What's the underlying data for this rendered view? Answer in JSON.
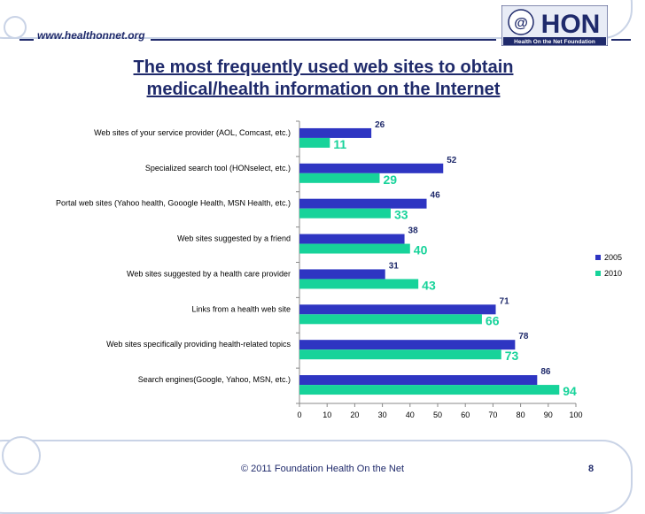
{
  "header": {
    "site_url": "www.healthonnet.org",
    "logo_text": "HON",
    "logo_subtitle": "Health On the Net Foundation",
    "title_line1": "The most frequently used web sites to obtain",
    "title_line2": "medical/health information on the Internet"
  },
  "footer": {
    "copyright": "© 2011 Foundation Health On the Net",
    "page_number": "8"
  },
  "colors": {
    "series_2005": "#2e35c2",
    "series_2010": "#17d39a",
    "dark_blue": "#1f2a6b"
  },
  "chart_data": {
    "type": "bar",
    "orientation": "horizontal",
    "title": "",
    "xlabel": "",
    "ylabel": "",
    "xlim": [
      0,
      100
    ],
    "x_ticks": [
      "0",
      "10",
      "20",
      "30",
      "40",
      "50",
      "60",
      "70",
      "80",
      "90",
      "100"
    ],
    "legend_position": "right",
    "categories": [
      "Web sites of your service provider (AOL, Comcast, etc.)",
      "Specialized search tool (HONselect, etc.)",
      "Portal web sites (Yahoo health, Gooogle Health, MSN Health, etc.)",
      "Web sites suggested by a friend",
      "Web sites suggested by a health care provider",
      "Links from a health web site",
      "Web sites specifically providing health-related topics",
      "Search engines(Google, Yahoo, MSN, etc.)"
    ],
    "series": [
      {
        "name": "2005",
        "values": [
          26,
          52,
          46,
          38,
          31,
          71,
          78,
          86
        ]
      },
      {
        "name": "2010",
        "values": [
          11,
          29,
          33,
          40,
          43,
          66,
          73,
          94
        ]
      }
    ]
  }
}
